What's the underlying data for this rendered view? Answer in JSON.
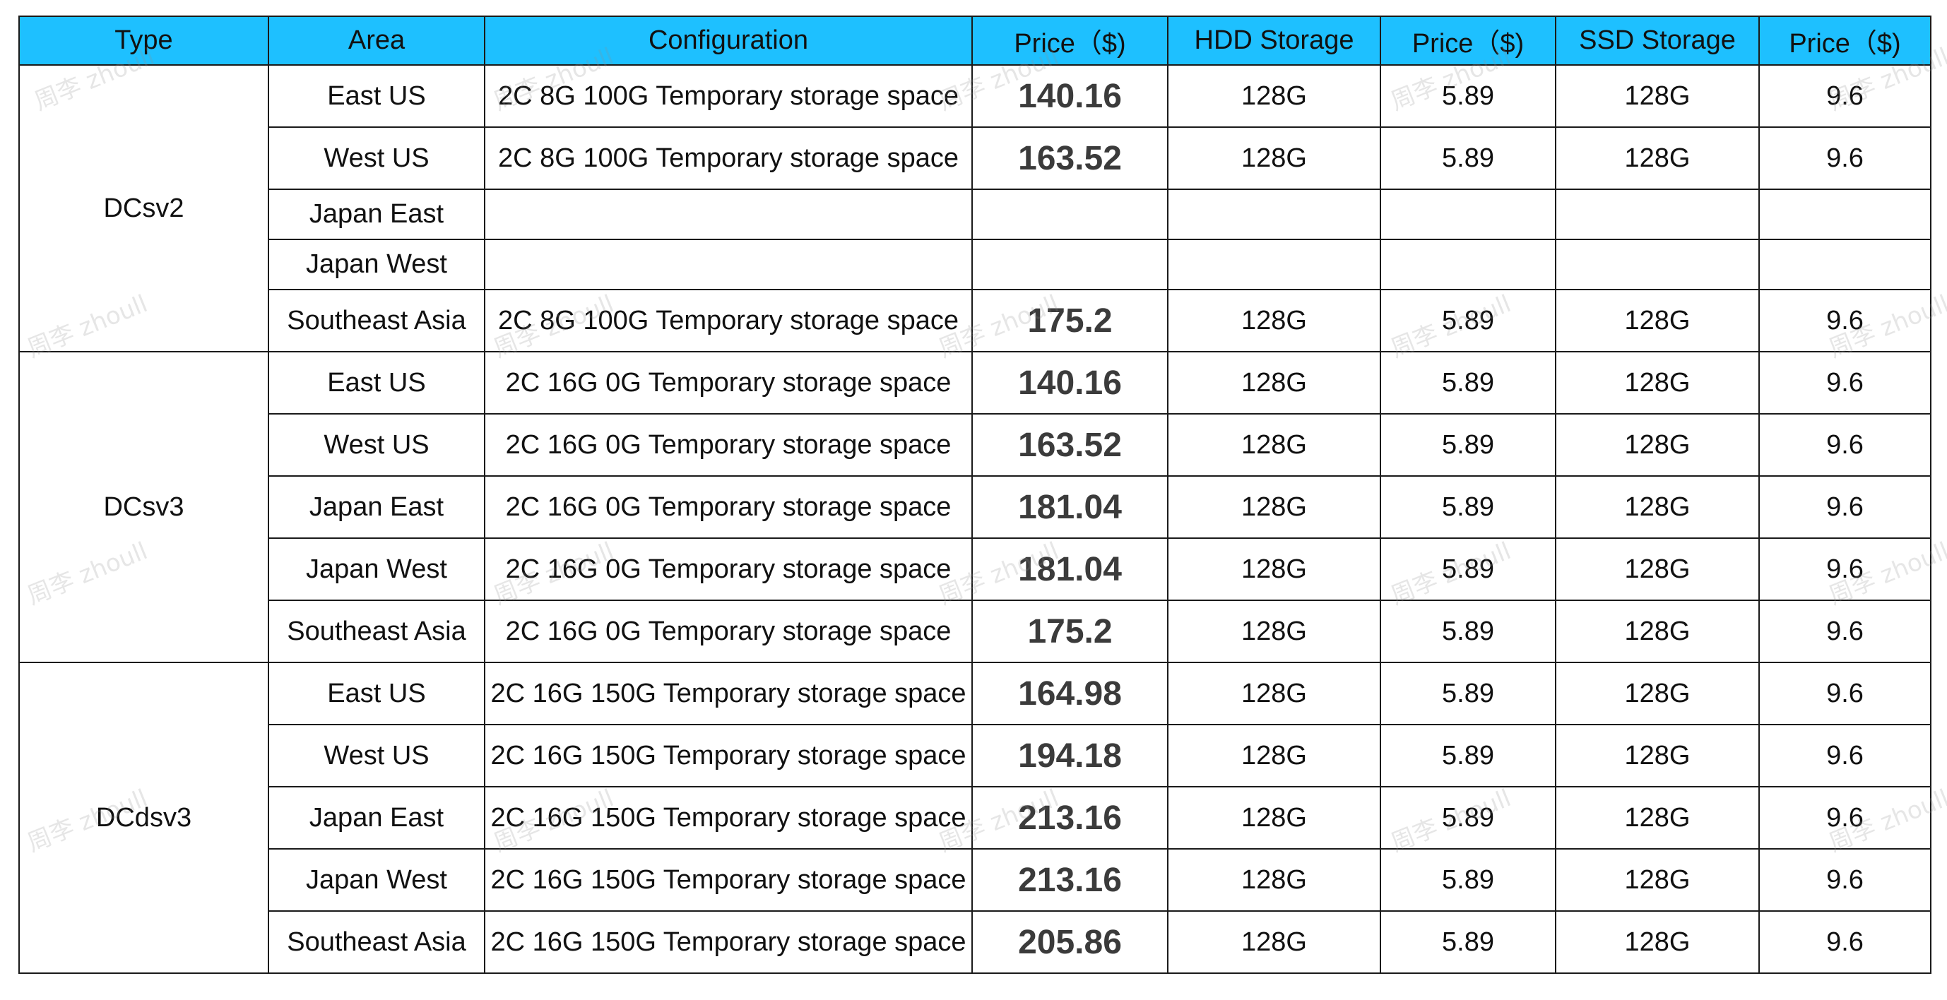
{
  "table": {
    "headers": [
      "Type",
      "Area",
      "Configuration",
      "Price（$)",
      "HDD Storage",
      "Price（$)",
      "SSD Storage",
      "Price（$)"
    ],
    "groups": [
      {
        "type": "DCsv2",
        "rows": [
          {
            "area": "East US",
            "configuration": "2C 8G 100G Temporary storage space",
            "price": "140.16",
            "hdd_storage": "128G",
            "hdd_price": "5.89",
            "ssd_storage": "128G",
            "ssd_price": "9.6"
          },
          {
            "area": "West US",
            "configuration": "2C 8G 100G Temporary storage space",
            "price": "163.52",
            "hdd_storage": "128G",
            "hdd_price": "5.89",
            "ssd_storage": "128G",
            "ssd_price": "9.6"
          },
          {
            "area": "Japan East",
            "configuration": "",
            "price": "",
            "hdd_storage": "",
            "hdd_price": "",
            "ssd_storage": "",
            "ssd_price": ""
          },
          {
            "area": "Japan West",
            "configuration": "",
            "price": "",
            "hdd_storage": "",
            "hdd_price": "",
            "ssd_storage": "",
            "ssd_price": ""
          },
          {
            "area": "Southeast Asia",
            "configuration": "2C 8G 100G Temporary storage space",
            "price": "175.2",
            "hdd_storage": "128G",
            "hdd_price": "5.89",
            "ssd_storage": "128G",
            "ssd_price": "9.6"
          }
        ]
      },
      {
        "type": "DCsv3",
        "rows": [
          {
            "area": "East US",
            "configuration": "2C 16G 0G Temporary storage space",
            "price": "140.16",
            "hdd_storage": "128G",
            "hdd_price": "5.89",
            "ssd_storage": "128G",
            "ssd_price": "9.6"
          },
          {
            "area": "West US",
            "configuration": "2C 16G 0G Temporary storage space",
            "price": "163.52",
            "hdd_storage": "128G",
            "hdd_price": "5.89",
            "ssd_storage": "128G",
            "ssd_price": "9.6"
          },
          {
            "area": "Japan East",
            "configuration": "2C 16G 0G Temporary storage space",
            "price": "181.04",
            "hdd_storage": "128G",
            "hdd_price": "5.89",
            "ssd_storage": "128G",
            "ssd_price": "9.6"
          },
          {
            "area": "Japan West",
            "configuration": "2C 16G 0G Temporary storage space",
            "price": "181.04",
            "hdd_storage": "128G",
            "hdd_price": "5.89",
            "ssd_storage": "128G",
            "ssd_price": "9.6"
          },
          {
            "area": "Southeast Asia",
            "configuration": "2C 16G 0G Temporary storage space",
            "price": "175.2",
            "hdd_storage": "128G",
            "hdd_price": "5.89",
            "ssd_storage": "128G",
            "ssd_price": "9.6"
          }
        ]
      },
      {
        "type": "DCdsv3",
        "rows": [
          {
            "area": "East US",
            "configuration": "2C 16G 150G Temporary storage space",
            "price": "164.98",
            "hdd_storage": "128G",
            "hdd_price": "5.89",
            "ssd_storage": "128G",
            "ssd_price": "9.6"
          },
          {
            "area": "West US",
            "configuration": "2C 16G 150G Temporary storage space",
            "price": "194.18",
            "hdd_storage": "128G",
            "hdd_price": "5.89",
            "ssd_storage": "128G",
            "ssd_price": "9.6"
          },
          {
            "area": "Japan East",
            "configuration": "2C 16G 150G Temporary storage space",
            "price": "213.16",
            "hdd_storage": "128G",
            "hdd_price": "5.89",
            "ssd_storage": "128G",
            "ssd_price": "9.6"
          },
          {
            "area": "Japan West",
            "configuration": "2C 16G 150G Temporary storage space",
            "price": "213.16",
            "hdd_storage": "128G",
            "hdd_price": "5.89",
            "ssd_storage": "128G",
            "ssd_price": "9.6"
          },
          {
            "area": "Southeast Asia",
            "configuration": "2C 16G 150G Temporary storage space",
            "price": "205.86",
            "hdd_storage": "128G",
            "hdd_price": "5.89",
            "ssd_storage": "128G",
            "ssd_price": "9.6"
          }
        ]
      }
    ]
  },
  "colors": {
    "header_bg": "#1ec0ff",
    "border": "#1a1a1a",
    "price_text": "#3b3b3b"
  },
  "watermark": {
    "text": "周李 zhoull"
  }
}
